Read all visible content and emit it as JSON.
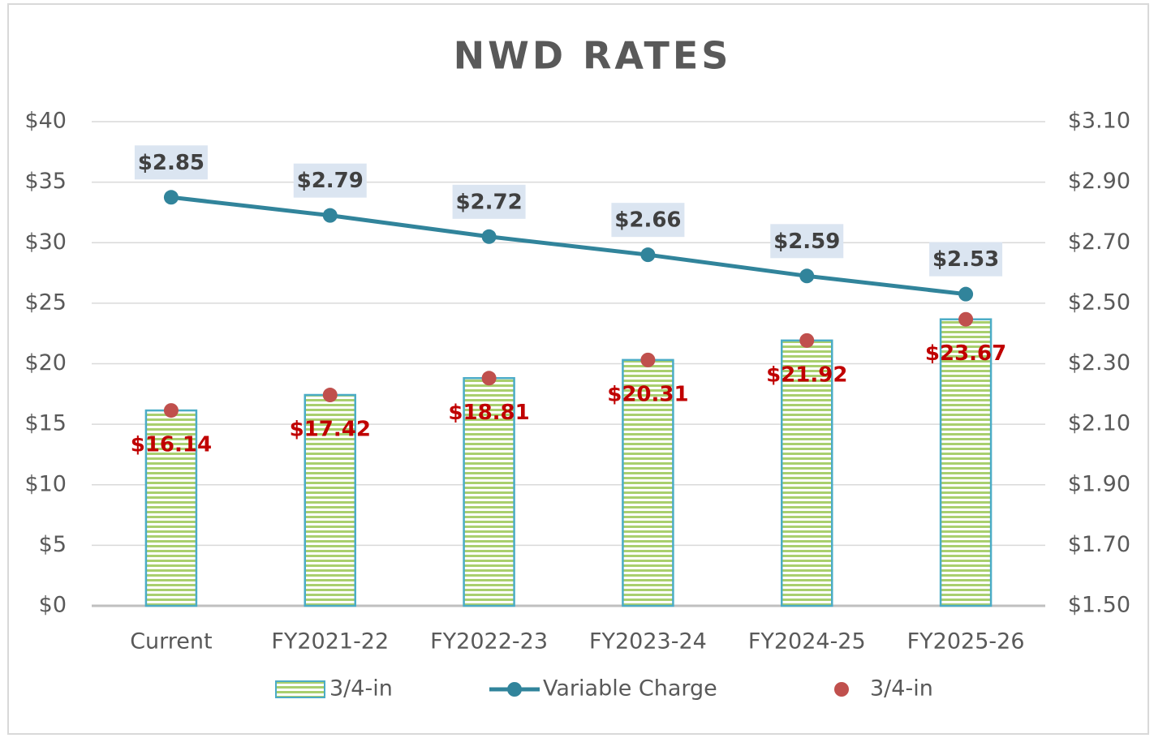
{
  "chart_data": {
    "type": "bar",
    "title": "NWD RATES",
    "categories": [
      "Current",
      "FY2021-22",
      "FY2022-23",
      "FY2023-24",
      "FY2024-25",
      "FY2025-26"
    ],
    "series": [
      {
        "name": "3/4-in",
        "type": "bar",
        "color": "#a9cf6e",
        "values": [
          16.14,
          17.42,
          18.81,
          20.31,
          21.92,
          23.67
        ]
      },
      {
        "name": "Variable Charge",
        "type": "line",
        "axis": "y2",
        "color": "#31849b",
        "values": [
          2.85,
          2.79,
          2.72,
          2.66,
          2.59,
          2.53
        ],
        "value_labels": [
          "$2.85",
          "$2.79",
          "$2.72",
          "$2.66",
          "$2.59",
          "$2.53"
        ]
      },
      {
        "name": "3/4-in",
        "type": "scatter",
        "color": "#c0504d",
        "values": [
          16.14,
          17.42,
          18.81,
          20.31,
          21.92,
          23.67
        ],
        "value_labels": [
          "$16.14",
          "$17.42",
          "$18.81",
          "$20.31",
          "$21.92",
          "$23.67"
        ]
      }
    ],
    "ylim": [
      0,
      40
    ],
    "yticks": [
      {
        "value": 0,
        "label": "$0"
      },
      {
        "value": 5,
        "label": "$5"
      },
      {
        "value": 10,
        "label": "$10"
      },
      {
        "value": 15,
        "label": "$15"
      },
      {
        "value": 20,
        "label": "$20"
      },
      {
        "value": 25,
        "label": "$25"
      },
      {
        "value": 30,
        "label": "$30"
      },
      {
        "value": 35,
        "label": "$35"
      },
      {
        "value": 40,
        "label": "$40"
      }
    ],
    "y2lim": [
      1.5,
      3.1
    ],
    "y2ticks": [
      {
        "value": 1.5,
        "label": "$1.50"
      },
      {
        "value": 1.7,
        "label": "$1.70"
      },
      {
        "value": 1.9,
        "label": "$1.90"
      },
      {
        "value": 2.1,
        "label": "$2.10"
      },
      {
        "value": 2.3,
        "label": "$2.30"
      },
      {
        "value": 2.5,
        "label": "$2.50"
      },
      {
        "value": 2.7,
        "label": "$2.70"
      },
      {
        "value": 2.9,
        "label": "$2.90"
      },
      {
        "value": 3.1,
        "label": "$3.10"
      }
    ],
    "grid": true,
    "legend": "bottom"
  }
}
